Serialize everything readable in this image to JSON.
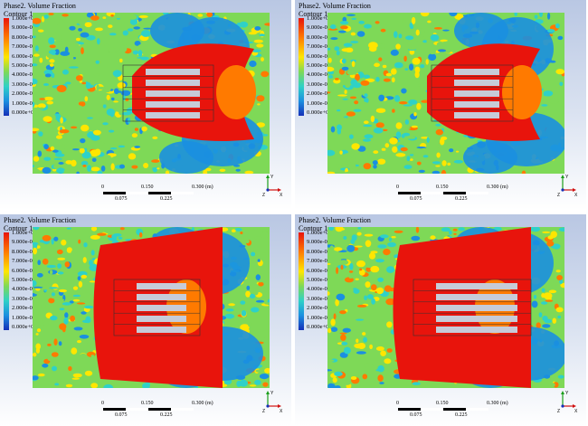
{
  "panels": [
    {
      "id": "tl",
      "title_line1": "Phase2. Volume Fraction",
      "title_line2": "Contour 1",
      "legend": [
        "1.000e+00",
        "9.000e-01",
        "8.000e-01",
        "7.000e-01",
        "6.000e-01",
        "5.000e-01",
        "4.000e-01",
        "3.000e-01",
        "2.000e-01",
        "1.000e-01",
        "0.000e+00"
      ],
      "scale_top": [
        "0",
        "0.150",
        "0.300 (m)"
      ],
      "scale_bottom": [
        "0.075",
        "0.225"
      ]
    },
    {
      "id": "tr",
      "title_line1": "Phase2. Volume Fraction",
      "title_line2": "Contour 1",
      "legend": [
        "1.000e+00",
        "9.000e-01",
        "8.000e-01",
        "7.000e-01",
        "6.000e-01",
        "5.000e-01",
        "4.000e-01",
        "3.000e-01",
        "2.000e-01",
        "1.000e-01",
        "0.000e+00"
      ],
      "scale_top": [
        "0",
        "0.150",
        "0.300 (m)"
      ],
      "scale_bottom": [
        "0.075",
        "0.225"
      ]
    },
    {
      "id": "bl",
      "title_line1": "Phase2. Volume Fraction",
      "title_line2": "Contour 1",
      "legend": [
        "1.000e+00",
        "9.000e-01",
        "8.000e-01",
        "7.000e-01",
        "6.000e-01",
        "5.000e-01",
        "4.000e-01",
        "3.000e-01",
        "2.000e-01",
        "1.000e-01",
        "0.000e+00"
      ],
      "scale_top": [
        "0",
        "0.150",
        "0.300 (m)"
      ],
      "scale_bottom": [
        "0.075",
        "0.225"
      ]
    },
    {
      "id": "br",
      "title_line1": "Phase2. Volume Fraction",
      "title_line2": "Contour 1",
      "legend": [
        "1.000e+00",
        "9.000e-01",
        "8.000e-01",
        "7.000e-01",
        "6.000e-01",
        "5.000e-01",
        "4.000e-01",
        "3.000e-01",
        "2.000e-01",
        "1.000e-01",
        "0.000e+00"
      ],
      "scale_top": [
        "0",
        "0.150",
        "0.300 (m)"
      ],
      "scale_bottom": [
        "0.075",
        "0.225"
      ]
    }
  ],
  "axis_labels": {
    "x": "X",
    "y": "Y",
    "z": "Z"
  },
  "colors": {
    "red": "#e8140c",
    "orange": "#ff7a00",
    "yellow": "#ffe600",
    "green": "#7ed957",
    "cyan": "#2fd1c7",
    "blue": "#1b8fe0",
    "darkblue": "#1530b8",
    "panel_bg": "#dbe3f1"
  }
}
